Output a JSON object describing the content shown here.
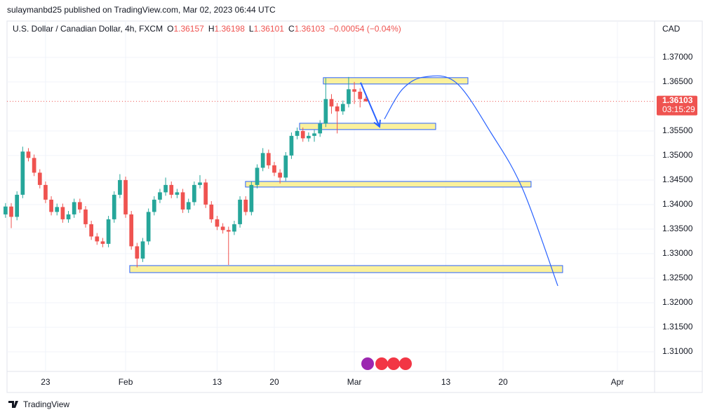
{
  "header": {
    "published": "sulaymanbd25 published on TradingView.com, Mar 02, 2023 06:44 UTC"
  },
  "footer": {
    "brand": "TradingView"
  },
  "chart_data": {
    "type": "candlestick",
    "title": "U.S. Dollar / Canadian Dollar, 4h, FXCM",
    "ohlc_legend": [
      {
        "label": "O",
        "value": 1.36157
      },
      {
        "label": "H",
        "value": 1.36198
      },
      {
        "label": "L",
        "value": 1.36101
      },
      {
        "label": "C",
        "value": 1.36103
      }
    ],
    "change": "−0.00054 (−0.04%)",
    "currency": "CAD",
    "last_price": 1.36103,
    "countdown": "03:15:29",
    "x": [
      -3.5,
      -3,
      -2.5,
      -2,
      -1.5,
      -1,
      -0.5,
      0,
      0.5,
      1,
      1.5,
      2,
      2.5,
      3,
      3.5,
      4,
      4.5,
      5,
      5.5,
      6,
      6.5,
      7,
      7.5,
      8,
      8.5,
      9,
      9.5,
      10,
      10.5,
      11,
      11.5,
      12,
      12.5,
      13,
      13.5,
      14,
      14.5,
      15,
      15.5,
      16,
      16.5,
      17,
      17.5,
      18,
      18.5,
      19,
      19.5,
      20,
      20.5,
      21,
      21.5,
      22,
      22.5,
      23,
      23.5,
      24,
      24.5,
      25,
      25.5,
      26,
      26.5,
      27,
      27.5,
      28
    ],
    "open": [
      1.338,
      1.3396,
      1.3375,
      1.342,
      1.3508,
      1.3495,
      1.3465,
      1.344,
      1.341,
      1.3385,
      1.3395,
      1.337,
      1.338,
      1.3405,
      1.339,
      1.336,
      1.3335,
      1.3325,
      1.332,
      1.337,
      1.342,
      1.345,
      1.338,
      1.3315,
      1.329,
      1.3325,
      1.3385,
      1.341,
      1.3425,
      1.344,
      1.342,
      1.3425,
      1.339,
      1.3405,
      1.344,
      1.3445,
      1.34,
      1.337,
      1.3355,
      1.3348,
      1.3345,
      1.336,
      1.341,
      1.3385,
      1.344,
      1.3475,
      1.3505,
      1.348,
      1.3465,
      1.3455,
      1.35,
      1.354,
      1.355,
      1.3535,
      1.354,
      1.3545,
      1.3565,
      1.3615,
      1.36,
      1.359,
      1.3605,
      1.3635,
      1.363,
      1.36157
    ],
    "high": [
      1.3403,
      1.3403,
      1.3427,
      1.3518,
      1.3515,
      1.3502,
      1.3472,
      1.3447,
      1.3417,
      1.3402,
      1.3402,
      1.3387,
      1.3412,
      1.3412,
      1.3397,
      1.3367,
      1.3342,
      1.3332,
      1.3377,
      1.3427,
      1.3462,
      1.3457,
      1.3387,
      1.3322,
      1.3332,
      1.3392,
      1.3417,
      1.3432,
      1.3455,
      1.3447,
      1.3432,
      1.3432,
      1.3412,
      1.3447,
      1.346,
      1.3452,
      1.3407,
      1.3377,
      1.3362,
      1.3355,
      1.3367,
      1.3417,
      1.3417,
      1.3447,
      1.3482,
      1.3515,
      1.3512,
      1.3487,
      1.3472,
      1.3507,
      1.3547,
      1.3557,
      1.3557,
      1.3547,
      1.3552,
      1.3572,
      1.3658,
      1.3625,
      1.3607,
      1.3612,
      1.366,
      1.365,
      1.3637,
      1.36198
    ],
    "low": [
      1.3373,
      1.3352,
      1.3368,
      1.3413,
      1.3488,
      1.3458,
      1.3433,
      1.3403,
      1.3378,
      1.3378,
      1.3363,
      1.3363,
      1.3373,
      1.3383,
      1.3353,
      1.3328,
      1.3318,
      1.3313,
      1.3313,
      1.3363,
      1.3413,
      1.3373,
      1.3308,
      1.3272,
      1.3283,
      1.3318,
      1.3378,
      1.3403,
      1.3418,
      1.3413,
      1.3413,
      1.3383,
      1.3383,
      1.3398,
      1.3433,
      1.3393,
      1.3363,
      1.3348,
      1.3341,
      1.3277,
      1.3338,
      1.3353,
      1.3378,
      1.3378,
      1.3433,
      1.3468,
      1.3473,
      1.3458,
      1.3443,
      1.3448,
      1.3493,
      1.3533,
      1.3528,
      1.3528,
      1.3528,
      1.3538,
      1.3558,
      1.3585,
      1.3545,
      1.3583,
      1.3598,
      1.3605,
      1.3598,
      1.36101
    ],
    "close": [
      1.3396,
      1.3375,
      1.342,
      1.3508,
      1.3495,
      1.3465,
      1.344,
      1.341,
      1.3385,
      1.3395,
      1.337,
      1.338,
      1.3405,
      1.339,
      1.336,
      1.3335,
      1.3325,
      1.332,
      1.337,
      1.342,
      1.345,
      1.338,
      1.3315,
      1.329,
      1.3325,
      1.3385,
      1.341,
      1.3425,
      1.344,
      1.342,
      1.3425,
      1.339,
      1.3405,
      1.344,
      1.3445,
      1.34,
      1.337,
      1.3355,
      1.3348,
      1.3345,
      1.336,
      1.341,
      1.3385,
      1.344,
      1.3475,
      1.3505,
      1.348,
      1.3465,
      1.3455,
      1.35,
      1.354,
      1.355,
      1.3535,
      1.354,
      1.3545,
      1.3565,
      1.3615,
      1.36,
      1.359,
      1.3605,
      1.3635,
      1.363,
      1.3615,
      1.36103
    ],
    "up_color": "#26a69a",
    "down_color": "#ef5350",
    "xlim": [
      -3.37,
      53.25
    ],
    "xticks": [
      {
        "value": 0,
        "label": "23"
      },
      {
        "value": 7,
        "label": "Feb"
      },
      {
        "value": 15,
        "label": "13"
      },
      {
        "value": 20,
        "label": "20"
      },
      {
        "value": 27,
        "label": "Mar"
      },
      {
        "value": 35,
        "label": "13"
      },
      {
        "value": 40,
        "label": "20"
      },
      {
        "value": 50,
        "label": "Apr"
      }
    ],
    "ylim": [
      1.306,
      1.3774
    ],
    "yticks": [
      {
        "value": 1.31,
        "label": "1.31000"
      },
      {
        "value": 1.315,
        "label": "1.31500"
      },
      {
        "value": 1.32,
        "label": "1.32000"
      },
      {
        "value": 1.325,
        "label": "1.32500"
      },
      {
        "value": 1.33,
        "label": "1.33000"
      },
      {
        "value": 1.335,
        "label": "1.33500"
      },
      {
        "value": 1.34,
        "label": "1.34000"
      },
      {
        "value": 1.345,
        "label": "1.34500"
      },
      {
        "value": 1.35,
        "label": "1.35000"
      },
      {
        "value": 1.355,
        "label": "1.35500"
      },
      {
        "value": 1.365,
        "label": "1.36500"
      },
      {
        "value": 1.37,
        "label": "1.37000"
      }
    ],
    "grid": true,
    "zones": [
      {
        "x": [
          24.29,
          36.93
        ],
        "y": [
          1.36457,
          1.36586
        ]
      },
      {
        "x": [
          22.21,
          34.11
        ],
        "y": [
          1.35529,
          1.35657
        ]
      },
      {
        "x": [
          17.48,
          42.45
        ],
        "y": [
          1.34357,
          1.34471
        ]
      },
      {
        "x": [
          7.36,
          45.21
        ],
        "y": [
          1.32614,
          1.32757
        ]
      }
    ],
    "zone_color": "#fbf19c",
    "projection": {
      "color": "#2962ff",
      "arrow": {
        "x": [
          27.55,
          29.2
        ],
        "y": [
          1.36486,
          1.35586
        ]
      },
      "curve": {
        "x": [
          29.63,
          31.2,
          33.13,
          35.89,
          38.96,
          41.72,
          44.79
        ],
        "y": [
          1.35743,
          1.3635,
          1.366,
          1.36486,
          1.35457,
          1.34314,
          1.32343
        ]
      }
    }
  }
}
